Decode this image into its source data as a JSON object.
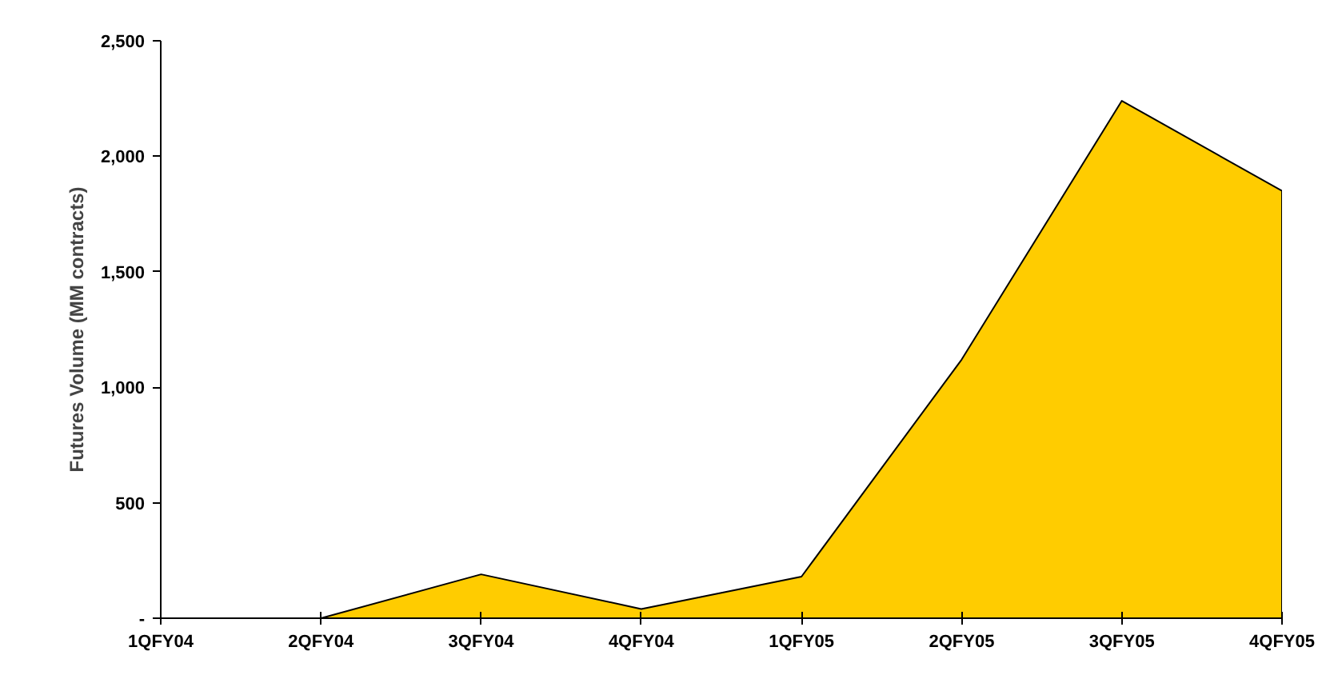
{
  "chart_data": {
    "type": "area",
    "ylabel": "Futures Volume (MM contracts)",
    "categories": [
      "1QFY04",
      "2QFY04",
      "3QFY04",
      "4QFY04",
      "1QFY05",
      "2QFY05",
      "3QFY05",
      "4QFY05"
    ],
    "series": [
      {
        "color": "#ffcc00",
        "values": [
          0,
          0,
          190,
          40,
          180,
          1120,
          2240,
          1850
        ]
      }
    ],
    "ylim": [
      0,
      2500
    ],
    "yticks": [
      {
        "value": 0,
        "label": "-"
      },
      {
        "value": 500,
        "label": "500"
      },
      {
        "value": 1000,
        "label": "1,000"
      },
      {
        "value": 1500,
        "label": "1,500"
      },
      {
        "value": 2000,
        "label": "2,000"
      },
      {
        "value": 2500,
        "label": "2,500"
      }
    ],
    "grid": false
  }
}
